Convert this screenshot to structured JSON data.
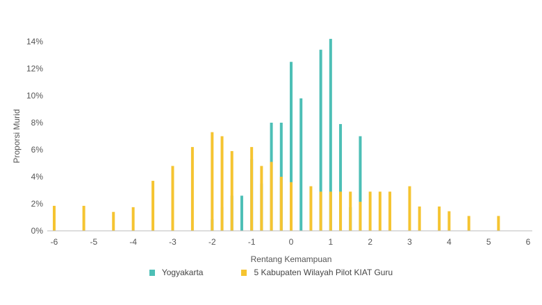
{
  "chart_data": {
    "type": "bar",
    "xlabel": "Rentang Kemampuan",
    "ylabel": "Proporsi Murid",
    "xlim": [
      -6,
      6
    ],
    "ylim": [
      0,
      14
    ],
    "x_ticks": [
      "-6",
      "-5",
      "-4",
      "-3",
      "-2",
      "-1",
      "0",
      "1",
      "2",
      "3",
      "4",
      "5",
      "6"
    ],
    "y_ticks": [
      "0%",
      "2%",
      "4%",
      "6%",
      "8%",
      "10%",
      "12%",
      "14%"
    ],
    "series": [
      {
        "name": "Yogyakarta",
        "color": "#4dbfb6",
        "points": [
          {
            "x": -2.0,
            "y": 0.85
          },
          {
            "x": -1.75,
            "y": 1.75
          },
          {
            "x": -1.5,
            "y": 2.6
          },
          {
            "x": -1.25,
            "y": 2.6
          },
          {
            "x": -1.0,
            "y": 5.3
          },
          {
            "x": -0.75,
            "y": 3.5
          },
          {
            "x": -0.5,
            "y": 8.0
          },
          {
            "x": -0.25,
            "y": 8.0
          },
          {
            "x": 0.0,
            "y": 12.5
          },
          {
            "x": 0.25,
            "y": 9.8
          },
          {
            "x": 0.75,
            "y": 13.4
          },
          {
            "x": 1.0,
            "y": 14.2
          },
          {
            "x": 1.25,
            "y": 7.9
          },
          {
            "x": 1.5,
            "y": 1.75
          },
          {
            "x": 1.75,
            "y": 7.0
          }
        ]
      },
      {
        "name": "5 Kabupaten Wilayah Pilot KIAT Guru",
        "color": "#f5c431",
        "points": [
          {
            "x": -6.0,
            "y": 1.85
          },
          {
            "x": -5.25,
            "y": 1.85
          },
          {
            "x": -4.5,
            "y": 1.4
          },
          {
            "x": -4.0,
            "y": 1.75
          },
          {
            "x": -3.5,
            "y": 3.7
          },
          {
            "x": -3.0,
            "y": 4.8
          },
          {
            "x": -2.5,
            "y": 6.2
          },
          {
            "x": -2.0,
            "y": 7.3
          },
          {
            "x": -1.75,
            "y": 7.0
          },
          {
            "x": -1.5,
            "y": 5.9
          },
          {
            "x": -1.0,
            "y": 6.2
          },
          {
            "x": -0.75,
            "y": 4.8
          },
          {
            "x": -0.5,
            "y": 5.1
          },
          {
            "x": -0.25,
            "y": 4.0
          },
          {
            "x": 0.0,
            "y": 3.6
          },
          {
            "x": 0.5,
            "y": 3.3
          },
          {
            "x": 0.75,
            "y": 2.9
          },
          {
            "x": 1.0,
            "y": 2.9
          },
          {
            "x": 1.25,
            "y": 2.9
          },
          {
            "x": 1.5,
            "y": 2.9
          },
          {
            "x": 1.75,
            "y": 2.15
          },
          {
            "x": 2.0,
            "y": 2.9
          },
          {
            "x": 2.25,
            "y": 2.9
          },
          {
            "x": 2.5,
            "y": 2.9
          },
          {
            "x": 3.0,
            "y": 3.3
          },
          {
            "x": 3.25,
            "y": 1.8
          },
          {
            "x": 3.75,
            "y": 1.8
          },
          {
            "x": 4.0,
            "y": 1.45
          },
          {
            "x": 4.5,
            "y": 1.1
          },
          {
            "x": 5.25,
            "y": 1.1
          }
        ]
      }
    ],
    "legend_position": "bottom-center",
    "grid": false
  }
}
